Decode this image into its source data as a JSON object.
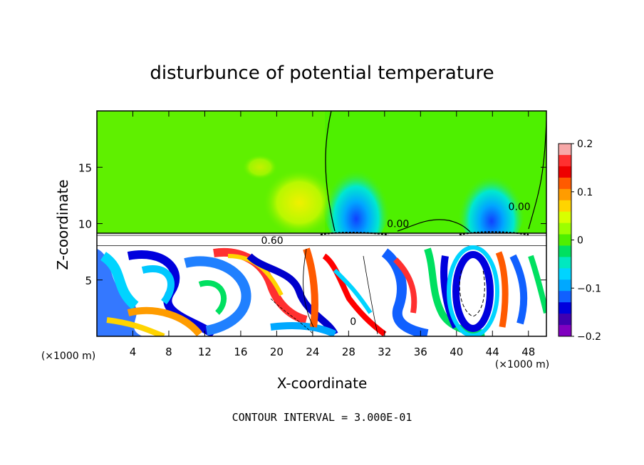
{
  "chart_data": {
    "type": "heatmap",
    "title": "disturbunce of potential temperature",
    "xlabel": "X-coordinate",
    "ylabel": "Z-coordinate",
    "x_unit_left": "(×1000 m)",
    "x_unit_right": "(×1000 m)",
    "footer": "CONTOUR INTERVAL = 3.000E-01",
    "xlim": [
      0,
      50
    ],
    "ylim": [
      0,
      20
    ],
    "x_ticks": [
      4,
      8,
      12,
      16,
      20,
      24,
      28,
      32,
      36,
      40,
      44,
      48
    ],
    "y_ticks": [
      5,
      10,
      15
    ],
    "colorbar": {
      "min": -0.2,
      "max": 0.2,
      "ticks": [
        0.2,
        0.1,
        0,
        -0.1,
        -0.2
      ],
      "tick_labels": [
        "0.2",
        "0.1",
        "0",
        "−0.1",
        "−0.2"
      ],
      "colors": [
        "#f7a8a8",
        "#ff3030",
        "#ee0000",
        "#ff5a00",
        "#ff9c00",
        "#ffd400",
        "#d8ff00",
        "#9cff00",
        "#4fef00",
        "#00e060",
        "#00e8c0",
        "#00d4ff",
        "#00a8ff",
        "#1060ff",
        "#0000dd",
        "#4000b0",
        "#8000c0"
      ]
    },
    "contour_labels": [
      {
        "text": "0.60",
        "x": 19.5,
        "z": 8.2
      },
      {
        "text": "0.00",
        "x": 33.5,
        "z": 9.7
      },
      {
        "text": "0.00",
        "x": 47.0,
        "z": 11.2
      },
      {
        "text": "0",
        "x": 28.5,
        "z": 1.0
      }
    ]
  }
}
